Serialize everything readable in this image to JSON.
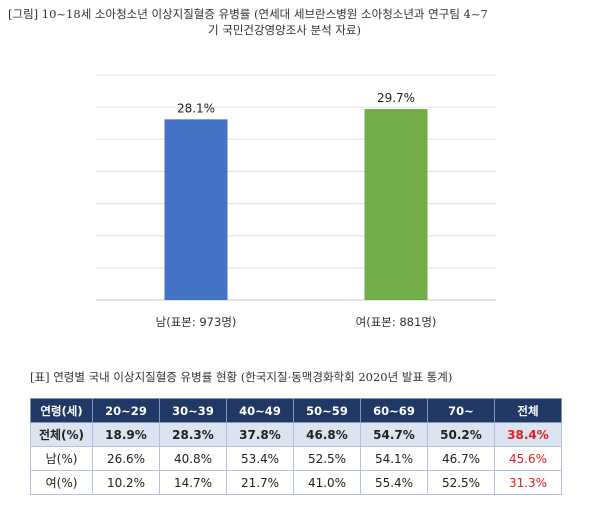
{
  "figure_caption": {
    "line1": "[그림] 10~18세 소아청소년 이상지질혈증 유병률 (연세대 세브란스병원 소아청소년과 연구팀 4~7",
    "line2": "기 국민건강영양조사 분석 자료)"
  },
  "chart_data": {
    "type": "bar",
    "categories": [
      "남(표본: 973명)",
      "여(표본: 881명)"
    ],
    "values": [
      28.1,
      29.7
    ],
    "value_labels": [
      "28.1%",
      "29.7%"
    ],
    "colors": [
      "#4472c4",
      "#70ad47"
    ],
    "ylim": [
      0,
      35
    ],
    "gridlines": [
      0,
      5,
      10,
      15,
      20,
      25,
      30,
      35
    ],
    "grid": true,
    "title": "",
    "xlabel": "",
    "ylabel": ""
  },
  "table_caption": "[표] 연령별 국내 이상지질혈증 유병률 현황 (한국지질·동맥경화학회 2020년 발표 통계)",
  "table": {
    "headers": [
      "연령(세)",
      "20~29",
      "30~39",
      "40~49",
      "50~59",
      "60~69",
      "70~",
      "전체"
    ],
    "rows": [
      {
        "label": "전체(%)",
        "cells": [
          "18.9%",
          "28.3%",
          "37.8%",
          "46.8%",
          "54.7%",
          "50.2%"
        ],
        "total": "38.4%"
      },
      {
        "label": "남(%)",
        "cells": [
          "26.6%",
          "40.8%",
          "53.4%",
          "52.5%",
          "54.1%",
          "46.7%"
        ],
        "total": "45.6%"
      },
      {
        "label": "여(%)",
        "cells": [
          "10.2%",
          "14.7%",
          "21.7%",
          "41.0%",
          "55.4%",
          "52.5%"
        ],
        "total": "31.3%"
      }
    ]
  }
}
